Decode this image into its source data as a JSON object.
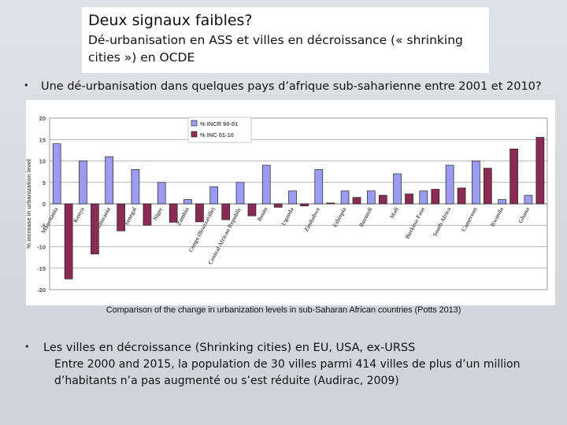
{
  "slide": {
    "title": "Deux signaux faibles?",
    "subtitle": "Dé-urbanisation en ASS et villes en décroissance (« shrinking cities ») en OCDE",
    "bullet1": "Une dé-urbanisation dans quelques pays d’afrique sub-saharienne entre 2001 et 2010?",
    "caption": "Comparison of the change in urbanization levels in sub-Saharan African countries (Potts 2013)",
    "bullet2": "Les villes en décroissance (Shrinking cities) en EU, USA, ex-URSS",
    "body": "Entre 2000 and 2015, la population de 30 villes parmi 414 villes de plus d’un million d’habitants n’a pas augmenté ou s’est réduite (Audirac, 2009)",
    "bullet_symbol": "•"
  },
  "chart_data": {
    "type": "bar",
    "ylabel": "% increase in urbanization level",
    "ylim": [
      -20,
      20
    ],
    "yticks": [
      20,
      15,
      10,
      5,
      0,
      -5,
      -10,
      -15,
      -20
    ],
    "grid": true,
    "legend_position": "top-center",
    "categories": [
      "Mauritania",
      "Kenya",
      "Tanzania",
      "Senegal",
      "Niger",
      "Zambia",
      "Congo (Brazzaville)",
      "Central African Republic",
      "Benin",
      "Uganda",
      "Zimbabwe",
      "Ethiopia",
      "Burundi",
      "Mali",
      "Burkina-Faso",
      "South Africa",
      "Cameroon",
      "Rwanda",
      "Ghana"
    ],
    "series": [
      {
        "name": "% INCR 90-01",
        "color": "#9b9bf2",
        "values": [
          14,
          10,
          11,
          8,
          5,
          1,
          4,
          5,
          9,
          3,
          8,
          3,
          3,
          7,
          3,
          9,
          10,
          1,
          2
        ]
      },
      {
        "name": "% INC 01-10",
        "color": "#8b2a52",
        "values": [
          -17.5,
          -11.7,
          -6.3,
          -5,
          -4.3,
          -4.2,
          -3.7,
          -2.8,
          -0.8,
          -0.5,
          0.2,
          1.5,
          2,
          2.3,
          3.4,
          3.7,
          8.3,
          12.8,
          15.5
        ]
      }
    ]
  }
}
